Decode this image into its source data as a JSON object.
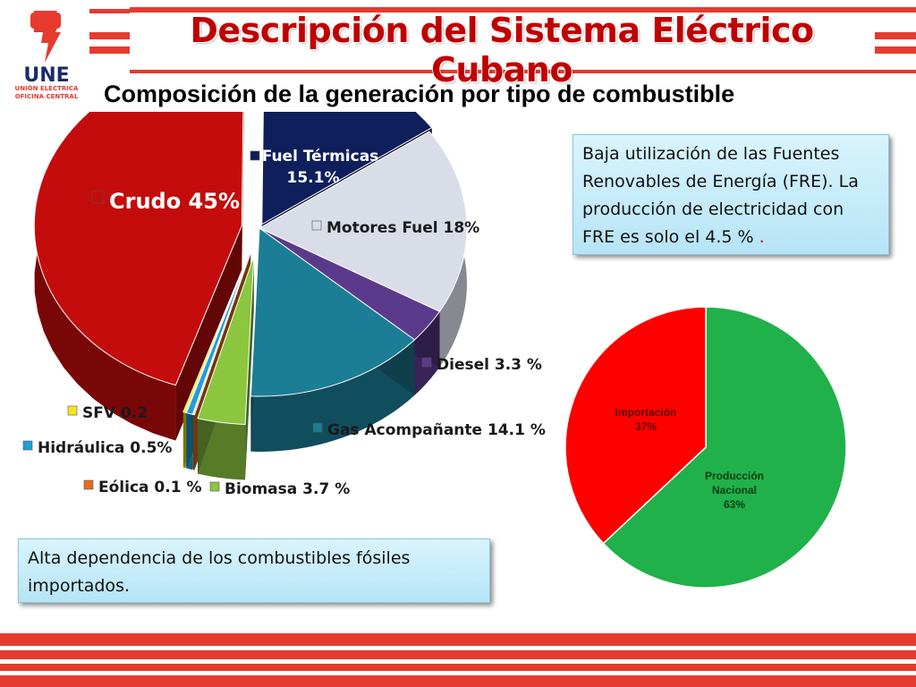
{
  "header": {
    "title": "Descripción del Sistema Eléctrico Cubano",
    "logo_text": "UNE",
    "logo_sub1": "UNIÓN ELÉCTRICA",
    "logo_sub2": "OFICINA CENTRAL"
  },
  "subtitle": "Composición de la generación por tipo de combustible",
  "callouts": {
    "renewables": "Baja utilización de las Fuentes Renovables de Energía (FRE). La producción de electricidad con FRE es solo el 4.5 %",
    "renewables_dot": " .",
    "fossil": "Alta dependencia de los combustibles fósiles importados."
  },
  "chart_data": [
    {
      "type": "pie",
      "title": "",
      "slices": [
        {
          "label": "Fuel Térmicas",
          "display": "15.1%",
          "value": 15.1,
          "color": "#0f1f5c"
        },
        {
          "label": "Motores Fuel",
          "display": "Motores Fuel 18%",
          "value": 18,
          "color": "#d9dde8"
        },
        {
          "label": "Diesel",
          "display": "Diesel 3.3 %",
          "value": 3.3,
          "color": "#5b3a8c"
        },
        {
          "label": "Gas Acompañante",
          "display": "Gas Acompañante 14.1 %",
          "value": 14.1,
          "color": "#1c7d96"
        },
        {
          "label": "Biomasa",
          "display": "Biomasa 3.7 %",
          "value": 3.7,
          "color": "#8cc63f"
        },
        {
          "label": "Eólica",
          "display": "Eólica 0.1 %",
          "value": 0.1,
          "color": "#e86c1a"
        },
        {
          "label": "Hidráulica",
          "display": "Hidráulica 0.5%",
          "value": 0.5,
          "color": "#1e9fd6"
        },
        {
          "label": "SFV",
          "display": "SFV 0.2",
          "value": 0.2,
          "color": "#f5e61a"
        },
        {
          "label": "Crudo",
          "display": "Crudo 45%",
          "value": 45,
          "color": "#c40c0c"
        }
      ]
    },
    {
      "type": "pie",
      "title": "",
      "slices": [
        {
          "label": "Producción Nacional",
          "display": "63%",
          "value": 63,
          "color": "#20b14a"
        },
        {
          "label": "Importación",
          "display": "37%",
          "value": 37,
          "color": "#ff0000"
        }
      ]
    }
  ]
}
